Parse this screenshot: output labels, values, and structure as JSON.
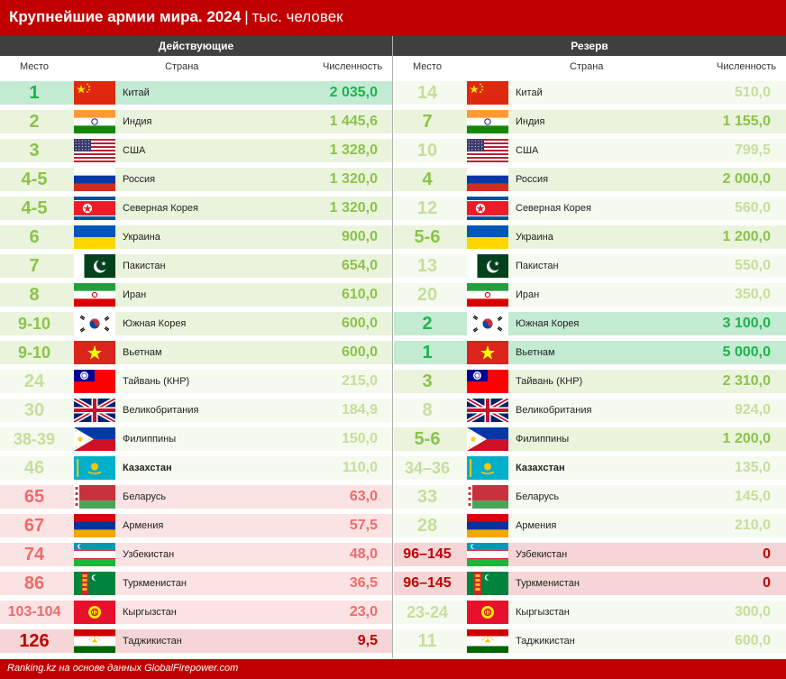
{
  "header": {
    "title_bold": "Крупнейшие армии мира. 2024",
    "separator": "|",
    "unit": "тыс. человек"
  },
  "sections": {
    "active": "Действующие",
    "reserve": "Резерв"
  },
  "columns": {
    "rank": "Место",
    "country": "Страна",
    "count": "Численность"
  },
  "footer": "Ranking.kz на основе данных GlobalFirepower.com",
  "colors": {
    "brand_red": "#c00000",
    "header_gray": "#404040",
    "tier_top_text": "#1db34f",
    "tier_top_bg": "#c3ebd2",
    "tier_mid_text": "#8bc34a",
    "tier_mid_bg": "#eaf4dc",
    "tier_low_text": "#c5de9c",
    "tier_low_bg": "#f5faee",
    "tier_cis_text": "#f06a6a",
    "tier_cis_bg": "#fbe3e3",
    "tier_zero_text": "#c00000",
    "tier_zero_bg": "#f5d5d5"
  },
  "chart_data": {
    "type": "table",
    "rows": [
      {
        "country": "Китай",
        "flag": "china",
        "bold": false,
        "active_rank": "1",
        "active_value": "2 035,0",
        "active_tier": "top",
        "reserve_rank": "14",
        "reserve_value": "510,0",
        "reserve_tier": "low"
      },
      {
        "country": "Индия",
        "flag": "india",
        "bold": false,
        "active_rank": "2",
        "active_value": "1 445,6",
        "active_tier": "mid",
        "reserve_rank": "7",
        "reserve_value": "1 155,0",
        "reserve_tier": "mid"
      },
      {
        "country": "США",
        "flag": "usa",
        "bold": false,
        "active_rank": "3",
        "active_value": "1 328,0",
        "active_tier": "mid",
        "reserve_rank": "10",
        "reserve_value": "799,5",
        "reserve_tier": "low"
      },
      {
        "country": "Россия",
        "flag": "russia",
        "bold": false,
        "active_rank": "4-5",
        "active_value": "1 320,0",
        "active_tier": "mid",
        "reserve_rank": "4",
        "reserve_value": "2 000,0",
        "reserve_tier": "mid"
      },
      {
        "country": "Северная Корея",
        "flag": "north-korea",
        "bold": false,
        "active_rank": "4-5",
        "active_value": "1 320,0",
        "active_tier": "mid",
        "reserve_rank": "12",
        "reserve_value": "560,0",
        "reserve_tier": "low"
      },
      {
        "country": "Украина",
        "flag": "ukraine",
        "bold": false,
        "active_rank": "6",
        "active_value": "900,0",
        "active_tier": "mid",
        "reserve_rank": "5-6",
        "reserve_value": "1 200,0",
        "reserve_tier": "mid"
      },
      {
        "country": "Пакистан",
        "flag": "pakistan",
        "bold": false,
        "active_rank": "7",
        "active_value": "654,0",
        "active_tier": "mid",
        "reserve_rank": "13",
        "reserve_value": "550,0",
        "reserve_tier": "low"
      },
      {
        "country": "Иран",
        "flag": "iran",
        "bold": false,
        "active_rank": "8",
        "active_value": "610,0",
        "active_tier": "mid",
        "reserve_rank": "20",
        "reserve_value": "350,0",
        "reserve_tier": "low"
      },
      {
        "country": "Южная Корея",
        "flag": "south-korea",
        "bold": false,
        "active_rank": "9-10",
        "active_value": "600,0",
        "active_tier": "mid",
        "reserve_rank": "2",
        "reserve_value": "3 100,0",
        "reserve_tier": "top"
      },
      {
        "country": "Вьетнам",
        "flag": "vietnam",
        "bold": false,
        "active_rank": "9-10",
        "active_value": "600,0",
        "active_tier": "mid",
        "reserve_rank": "1",
        "reserve_value": "5 000,0",
        "reserve_tier": "top"
      },
      {
        "country": "Тайвань (КНР)",
        "flag": "taiwan",
        "bold": false,
        "active_rank": "24",
        "active_value": "215,0",
        "active_tier": "low",
        "reserve_rank": "3",
        "reserve_value": "2 310,0",
        "reserve_tier": "mid"
      },
      {
        "country": "Великобритания",
        "flag": "uk",
        "bold": false,
        "active_rank": "30",
        "active_value": "184,9",
        "active_tier": "low",
        "reserve_rank": "8",
        "reserve_value": "924,0",
        "reserve_tier": "low"
      },
      {
        "country": "Филиппины",
        "flag": "philippines",
        "bold": false,
        "active_rank": "38-39",
        "active_value": "150,0",
        "active_tier": "low",
        "reserve_rank": "5-6",
        "reserve_value": "1 200,0",
        "reserve_tier": "mid"
      },
      {
        "country": "Казахстан",
        "flag": "kazakhstan",
        "bold": true,
        "active_rank": "46",
        "active_value": "110,0",
        "active_tier": "low",
        "reserve_rank": "34–36",
        "reserve_value": "135,0",
        "reserve_tier": "low"
      },
      {
        "country": "Беларусь",
        "flag": "belarus",
        "bold": false,
        "active_rank": "65",
        "active_value": "63,0",
        "active_tier": "cis",
        "reserve_rank": "33",
        "reserve_value": "145,0",
        "reserve_tier": "low"
      },
      {
        "country": "Армения",
        "flag": "armenia",
        "bold": false,
        "active_rank": "67",
        "active_value": "57,5",
        "active_tier": "cis",
        "reserve_rank": "28",
        "reserve_value": "210,0",
        "reserve_tier": "low"
      },
      {
        "country": "Узбекистан",
        "flag": "uzbekistan",
        "bold": false,
        "active_rank": "74",
        "active_value": "48,0",
        "active_tier": "cis",
        "reserve_rank": "96–145",
        "reserve_value": "0",
        "reserve_tier": "zero"
      },
      {
        "country": "Туркменистан",
        "flag": "turkmenistan",
        "bold": false,
        "active_rank": "86",
        "active_value": "36,5",
        "active_tier": "cis",
        "reserve_rank": "96–145",
        "reserve_value": "0",
        "reserve_tier": "zero"
      },
      {
        "country": "Кыргызстан",
        "flag": "kyrgyzstan",
        "bold": false,
        "active_rank": "103-104",
        "active_value": "23,0",
        "active_tier": "cis",
        "reserve_rank": "23-24",
        "reserve_value": "300,0",
        "reserve_tier": "low"
      },
      {
        "country": "Таджикистан",
        "flag": "tajikistan",
        "bold": false,
        "active_rank": "126",
        "active_value": "9,5",
        "active_tier": "zero",
        "reserve_rank": "11",
        "reserve_value": "600,0",
        "reserve_tier": "low"
      }
    ]
  }
}
